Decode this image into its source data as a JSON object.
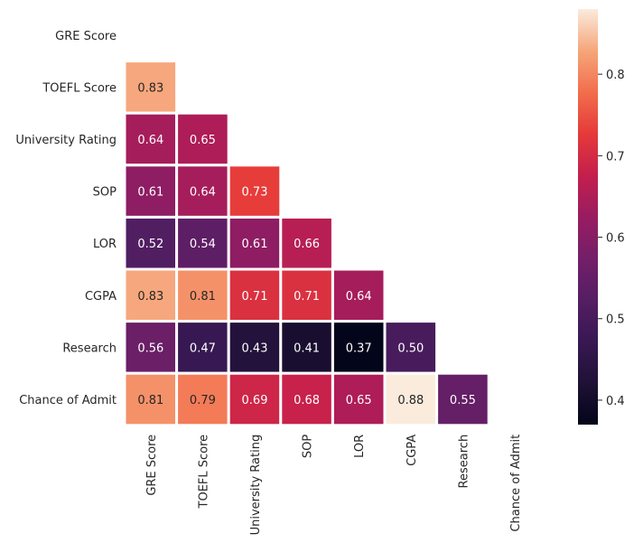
{
  "chart_data": {
    "type": "heatmap",
    "variables": [
      "GRE Score",
      "TOEFL Score",
      "University Rating",
      "SOP",
      "LOR",
      "CGPA",
      "Research",
      "Chance of Admit"
    ],
    "mask": "upper triangle including diagonal",
    "values": [
      [
        null,
        null,
        null,
        null,
        null,
        null,
        null,
        null
      ],
      [
        0.83,
        null,
        null,
        null,
        null,
        null,
        null,
        null
      ],
      [
        0.64,
        0.65,
        null,
        null,
        null,
        null,
        null,
        null
      ],
      [
        0.61,
        0.64,
        0.73,
        null,
        null,
        null,
        null,
        null
      ],
      [
        0.52,
        0.54,
        0.61,
        0.66,
        null,
        null,
        null,
        null
      ],
      [
        0.83,
        0.81,
        0.71,
        0.71,
        0.64,
        null,
        null,
        null
      ],
      [
        0.56,
        0.47,
        0.43,
        0.41,
        0.37,
        0.5,
        null,
        null
      ],
      [
        0.81,
        0.79,
        0.69,
        0.68,
        0.65,
        0.88,
        0.55,
        null
      ]
    ],
    "value_format": "2 decimals",
    "colormap": "rocket",
    "colorbar": {
      "range": [
        0.37,
        0.88
      ],
      "ticks": [
        "0.4",
        "0.5",
        "0.6",
        "0.7",
        "0.8"
      ],
      "position": "right"
    },
    "cell_border_color": "#ffffff"
  }
}
